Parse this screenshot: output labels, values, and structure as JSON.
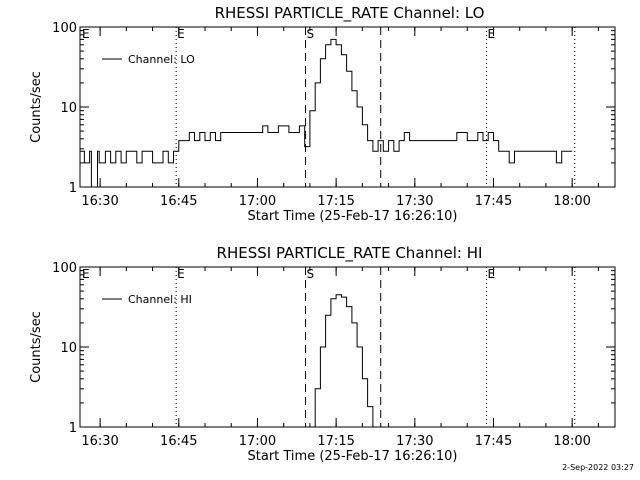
{
  "footer": {
    "timestamp": "2-Sep-2022 03:27"
  },
  "chart_data": [
    {
      "type": "line",
      "title": "RHESSI PARTICLE_RATE Channel: LO",
      "xlabel": "Start Time (25-Feb-17 16:26:10)",
      "ylabel": "Counts/sec",
      "y_scale": "log",
      "ylim": [
        1,
        100
      ],
      "xlim": [
        "16:26:10",
        "18:08:10"
      ],
      "y_ticks": [
        "1",
        "10",
        "100"
      ],
      "x_ticks": [
        "16:30",
        "16:45",
        "17:00",
        "17:15",
        "17:30",
        "17:45",
        "18:00"
      ],
      "legend": "top-left",
      "series": [
        {
          "name": "Channel: LO",
          "x": [
            "16:26:10",
            "16:27:00",
            "16:28:00",
            "16:28:20",
            "16:29:30",
            "16:29:50",
            "16:31:00",
            "16:32:00",
            "16:33:00",
            "16:34:00",
            "16:35:00",
            "16:36:00",
            "16:37:00",
            "16:38:00",
            "16:39:00",
            "16:40:00",
            "16:42:00",
            "16:43:00",
            "16:44:00",
            "16:45:00",
            "16:46:00",
            "16:47:00",
            "16:48:00",
            "16:49:00",
            "16:50:00",
            "16:51:00",
            "16:52:00",
            "16:53:00",
            "16:54:00",
            "16:56:00",
            "16:58:00",
            "17:00:00",
            "17:01:00",
            "17:02:00",
            "17:03:00",
            "17:04:00",
            "17:06:00",
            "17:07:00",
            "17:08:00",
            "17:09:00",
            "17:10:00",
            "17:11:00",
            "17:12:00",
            "17:13:00",
            "17:14:00",
            "17:15:00",
            "17:16:00",
            "17:17:00",
            "17:18:00",
            "17:19:00",
            "17:20:00",
            "17:21:00",
            "17:22:00",
            "17:23:00",
            "17:24:00",
            "17:25:00",
            "17:26:00",
            "17:27:00",
            "17:28:00",
            "17:29:00",
            "17:30:00",
            "17:32:00",
            "17:34:00",
            "17:36:00",
            "17:38:00",
            "17:40:00",
            "17:42:00",
            "17:43:00",
            "17:44:00",
            "17:45:00",
            "17:46:00",
            "17:47:00",
            "17:48:00",
            "17:49:00",
            "17:50:00",
            "17:52:00",
            "17:54:00",
            "17:56:00",
            "17:57:00",
            "17:58:00",
            "17:59:00",
            "18:00:00"
          ],
          "y": [
            2.8,
            2.0,
            2.8,
            1.0,
            2.8,
            2.0,
            2.8,
            2.0,
            2.8,
            2.0,
            2.8,
            2.8,
            2.0,
            2.8,
            2.8,
            2.0,
            2.8,
            2.0,
            2.8,
            3.8,
            3.8,
            4.8,
            3.8,
            4.8,
            3.8,
            4.8,
            3.8,
            4.8,
            4.8,
            4.8,
            4.8,
            4.8,
            5.8,
            4.8,
            4.8,
            5.8,
            4.8,
            4.8,
            5.8,
            3.2,
            9.0,
            20.0,
            40.0,
            60.0,
            70.0,
            60.0,
            45.0,
            28.0,
            16.0,
            10.0,
            6.0,
            3.8,
            2.8,
            3.8,
            2.8,
            3.8,
            2.8,
            3.8,
            4.8,
            3.8,
            3.8,
            3.8,
            3.8,
            3.8,
            4.8,
            3.8,
            4.8,
            3.8,
            4.8,
            3.8,
            2.8,
            2.8,
            2.0,
            2.8,
            2.8,
            2.8,
            2.8,
            2.8,
            2.0,
            2.8,
            2.8,
            2.8
          ]
        }
      ],
      "markers": [
        {
          "label": "E",
          "time": "16:44:30",
          "style": "dotted"
        },
        {
          "label": "S",
          "time": "17:09:10",
          "style": "dashed"
        },
        {
          "label": "",
          "time": "17:23:30",
          "style": "dashed"
        },
        {
          "label": "E",
          "time": "17:43:40",
          "style": "dotted"
        },
        {
          "label": "",
          "time": "18:00:30",
          "style": "dotted"
        }
      ],
      "corner_label": "E"
    },
    {
      "type": "line",
      "title": "RHESSI PARTICLE_RATE Channel: HI",
      "xlabel": "Start Time (25-Feb-17 16:26:10)",
      "ylabel": "Counts/sec",
      "y_scale": "log",
      "ylim": [
        1,
        100
      ],
      "xlim": [
        "16:26:10",
        "18:08:10"
      ],
      "y_ticks": [
        "1",
        "10",
        "100"
      ],
      "x_ticks": [
        "16:30",
        "16:45",
        "17:00",
        "17:15",
        "17:30",
        "17:45",
        "18:00"
      ],
      "legend": "top-left",
      "series": [
        {
          "name": "Channel: HI",
          "x": [
            "17:10:00",
            "17:11:00",
            "17:12:00",
            "17:13:00",
            "17:14:00",
            "17:15:00",
            "17:16:00",
            "17:17:00",
            "17:18:00",
            "17:19:00",
            "17:20:00",
            "17:21:00",
            "17:22:00"
          ],
          "y": [
            1.0,
            3.0,
            10.0,
            25.0,
            40.0,
            45.0,
            42.0,
            32.0,
            20.0,
            10.0,
            4.0,
            1.8,
            1.0
          ]
        }
      ],
      "markers": [
        {
          "label": "E",
          "time": "16:44:30",
          "style": "dotted"
        },
        {
          "label": "S",
          "time": "17:09:10",
          "style": "dashed"
        },
        {
          "label": "",
          "time": "17:23:30",
          "style": "dashed"
        },
        {
          "label": "E",
          "time": "17:43:40",
          "style": "dotted"
        },
        {
          "label": "",
          "time": "18:00:30",
          "style": "dotted"
        }
      ],
      "corner_label": "E"
    }
  ]
}
